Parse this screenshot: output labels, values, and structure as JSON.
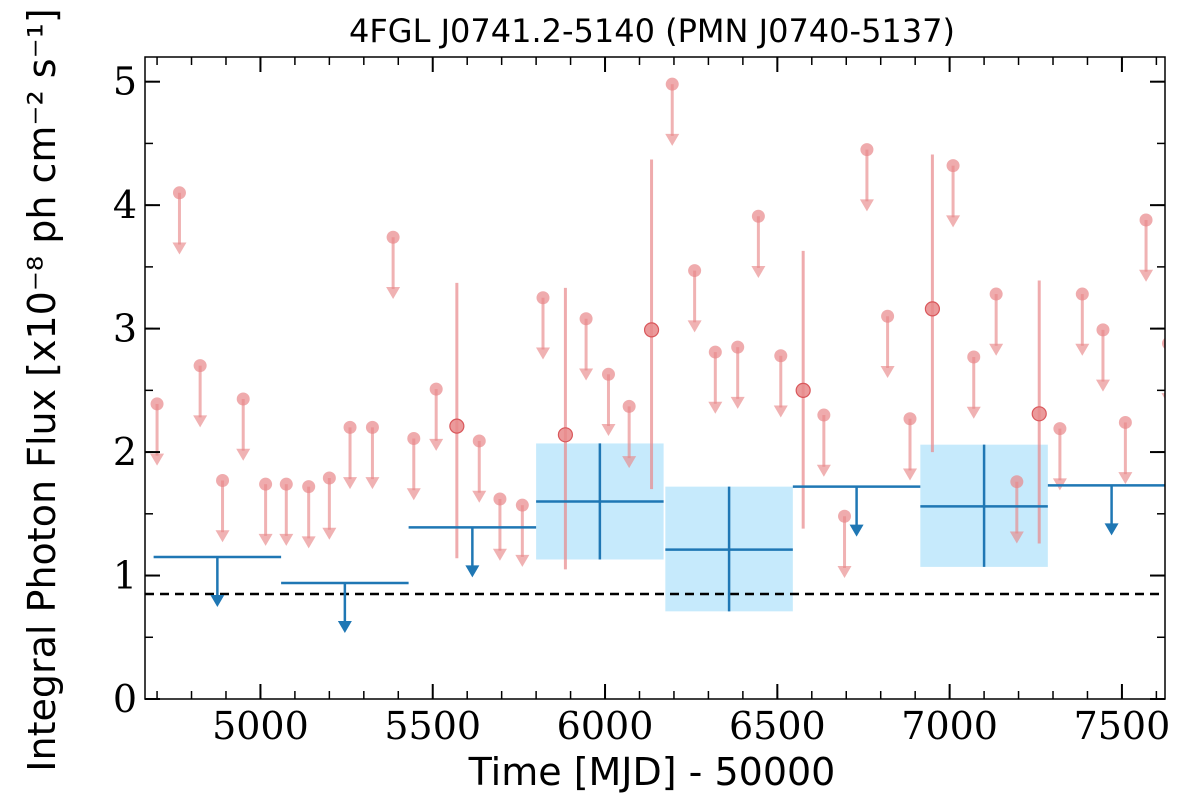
{
  "chart_data": {
    "type": "scatter",
    "title": "4FGL J0741.2-5140 (PMN J0740-5137)",
    "xlabel": "Time [MJD] - 50000",
    "ylabel": "Integral Photon Flux [x10⁻⁸ ph cm⁻² s⁻¹]",
    "xlim": [
      4665,
      7625
    ],
    "ylim": [
      0,
      5.2
    ],
    "x_major_ticks": [
      5000,
      5500,
      6000,
      6500,
      7000,
      7500
    ],
    "y_major_ticks": [
      0,
      1,
      2,
      3,
      4,
      5
    ],
    "x_minor_step": 100,
    "y_minor_step": 0.5,
    "grid": false,
    "baseline_dashed": 0.85,
    "colors": {
      "short_bins": "#e8888a",
      "long_bins": "#1f77b4",
      "band": "#c6eafc",
      "baseline": "#000000"
    },
    "short_bin_upper_limits": [
      {
        "x": 4700,
        "y": 2.39
      },
      {
        "x": 4765,
        "y": 4.1
      },
      {
        "x": 4825,
        "y": 2.7
      },
      {
        "x": 4890,
        "y": 1.77
      },
      {
        "x": 4950,
        "y": 2.43
      },
      {
        "x": 5015,
        "y": 1.74
      },
      {
        "x": 5075,
        "y": 1.74
      },
      {
        "x": 5140,
        "y": 1.72
      },
      {
        "x": 5200,
        "y": 1.79
      },
      {
        "x": 5260,
        "y": 2.2
      },
      {
        "x": 5325,
        "y": 2.2
      },
      {
        "x": 5385,
        "y": 3.74
      },
      {
        "x": 5445,
        "y": 2.11
      },
      {
        "x": 5510,
        "y": 2.51
      },
      {
        "x": 5635,
        "y": 2.09
      },
      {
        "x": 5695,
        "y": 1.62
      },
      {
        "x": 5760,
        "y": 1.57
      },
      {
        "x": 5820,
        "y": 3.25
      },
      {
        "x": 5945,
        "y": 3.08
      },
      {
        "x": 6010,
        "y": 2.63
      },
      {
        "x": 6070,
        "y": 2.37
      },
      {
        "x": 6195,
        "y": 4.98
      },
      {
        "x": 6260,
        "y": 3.47
      },
      {
        "x": 6320,
        "y": 2.81
      },
      {
        "x": 6385,
        "y": 2.85
      },
      {
        "x": 6445,
        "y": 3.91
      },
      {
        "x": 6510,
        "y": 2.78
      },
      {
        "x": 6635,
        "y": 2.3
      },
      {
        "x": 6695,
        "y": 1.48
      },
      {
        "x": 6760,
        "y": 4.45
      },
      {
        "x": 6820,
        "y": 3.1
      },
      {
        "x": 6885,
        "y": 2.27
      },
      {
        "x": 7010,
        "y": 4.32
      },
      {
        "x": 7070,
        "y": 2.77
      },
      {
        "x": 7135,
        "y": 3.28
      },
      {
        "x": 7195,
        "y": 1.76
      },
      {
        "x": 7320,
        "y": 2.19
      },
      {
        "x": 7385,
        "y": 3.28
      },
      {
        "x": 7445,
        "y": 2.99
      },
      {
        "x": 7510,
        "y": 2.24
      },
      {
        "x": 7570,
        "y": 3.88
      },
      {
        "x": 7635,
        "y": 2.88
      }
    ],
    "short_bin_detections": [
      {
        "x": 5570,
        "y": 2.21,
        "y_low": 1.14,
        "y_high": 3.37
      },
      {
        "x": 5885,
        "y": 2.14,
        "y_low": 1.05,
        "y_high": 3.33
      },
      {
        "x": 6135,
        "y": 2.99,
        "y_low": 1.7,
        "y_high": 4.37
      },
      {
        "x": 6575,
        "y": 2.5,
        "y_low": 1.38,
        "y_high": 3.63
      },
      {
        "x": 6950,
        "y": 3.16,
        "y_low": 2.0,
        "y_high": 4.41
      },
      {
        "x": 7260,
        "y": 2.31,
        "y_low": 1.26,
        "y_high": 3.39
      }
    ],
    "long_bin_upper_limits": [
      {
        "x": 4875,
        "x_low": 4690,
        "x_high": 5060,
        "y": 1.15
      },
      {
        "x": 5245,
        "x_low": 5060,
        "x_high": 5430,
        "y": 0.94
      },
      {
        "x": 5615,
        "x_low": 5430,
        "x_high": 5800,
        "y": 1.39
      },
      {
        "x": 6730,
        "x_low": 6545,
        "x_high": 6915,
        "y": 1.72
      },
      {
        "x": 7470,
        "x_low": 7285,
        "x_high": 7655,
        "y": 1.73
      }
    ],
    "long_bin_detections": [
      {
        "x": 5985,
        "x_low": 5800,
        "x_high": 6170,
        "y": 1.6,
        "y_low": 1.13,
        "y_high": 2.07
      },
      {
        "x": 6360,
        "x_low": 6175,
        "x_high": 6545,
        "y": 1.21,
        "y_low": 0.71,
        "y_high": 1.72
      },
      {
        "x": 7100,
        "x_low": 6915,
        "x_high": 7285,
        "y": 1.56,
        "y_low": 1.07,
        "y_high": 2.06
      }
    ]
  }
}
